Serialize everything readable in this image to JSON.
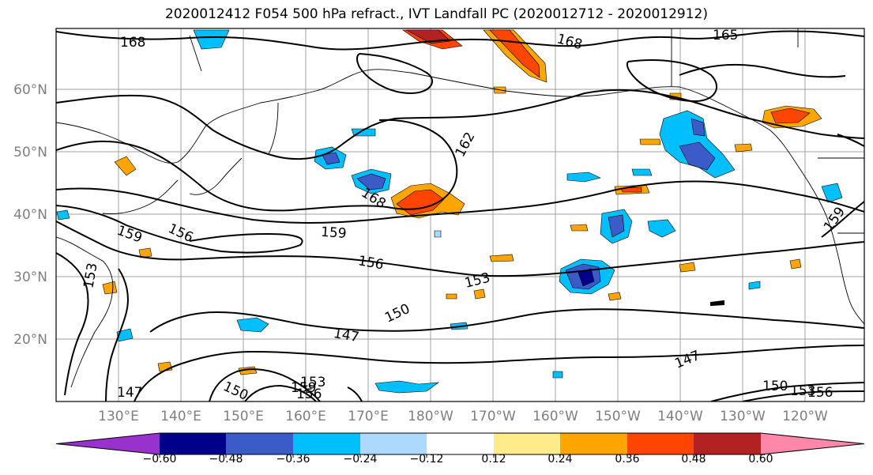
{
  "title": "2020012412 F054 500 hPa refract., IVT Landfall PC (2020012712 - 2020012912)",
  "lat_ticks": [
    "60°N",
    "50°N",
    "40°N",
    "30°N",
    "20°N"
  ],
  "lon_ticks": [
    "130°E",
    "140°E",
    "150°E",
    "160°E",
    "170°E",
    "180°W",
    "170°W",
    "160°W",
    "150°W",
    "140°W",
    "130°W",
    "120°W"
  ],
  "colorbar": {
    "colors": [
      "#9932cc",
      "#00008b",
      "#3a5bc8",
      "#00bfff",
      "#add8ff",
      "#ffffff",
      "#ffeb8a",
      "#ffa500",
      "#ff4500",
      "#b22222",
      "#ff88aa"
    ],
    "tick_labels": [
      "−0.60",
      "−0.48",
      "−0.36",
      "−0.24",
      "−0.12",
      "0.12",
      "0.24",
      "0.36",
      "0.48",
      "0.60"
    ]
  },
  "contour_labels": [
    "168",
    "168",
    "165",
    "162",
    "168",
    "159",
    "156",
    "159",
    "156",
    "153",
    "150",
    "147",
    "147",
    "150",
    "156",
    "159",
    "153",
    "153",
    "150",
    "147",
    "159",
    "153",
    "156"
  ]
}
